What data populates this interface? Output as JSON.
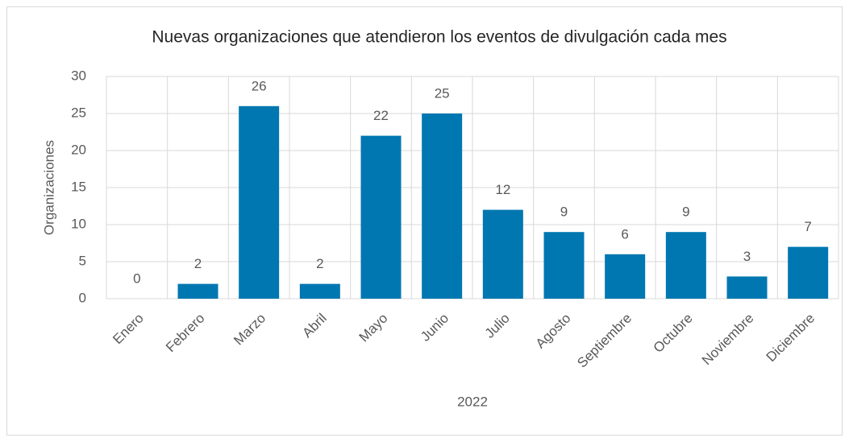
{
  "chart_data": {
    "type": "bar",
    "title": "Nuevas organizaciones que atendieron los eventos de divulgación cada mes",
    "x_label": "2022",
    "y_label": "Organizaciones",
    "categories": [
      "Enero",
      "Febrero",
      "Marzo",
      "Abril",
      "Mayo",
      "Junio",
      "Julio",
      "Agosto",
      "Septiembre",
      "Octubre",
      "Noviembre",
      "Diciembre"
    ],
    "values": [
      0,
      2,
      26,
      2,
      22,
      25,
      12,
      9,
      6,
      9,
      3,
      7
    ],
    "color": "#0077b0",
    "ylim": [
      0,
      30
    ],
    "yticks": [
      0,
      5,
      10,
      15,
      20,
      25,
      30
    ],
    "grid": true
  }
}
